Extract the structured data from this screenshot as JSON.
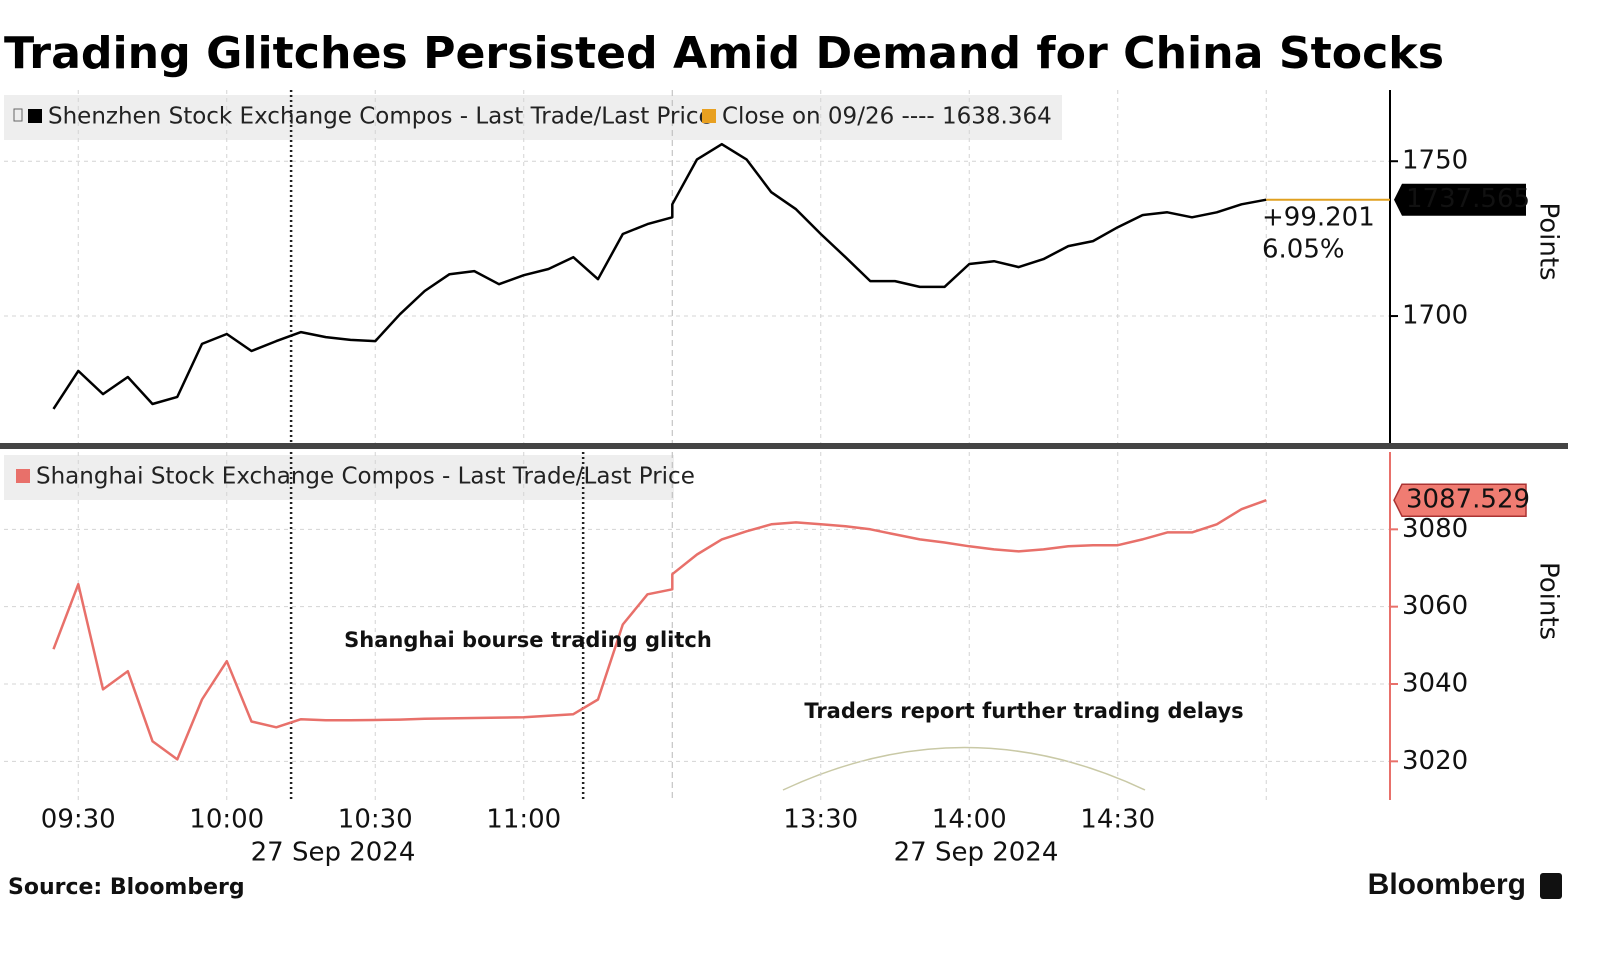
{
  "title": "Trading Glitches Persisted Amid Demand for China Stocks",
  "source": "Source: Bloomberg",
  "brand": "Bloomberg",
  "chart_data": [
    {
      "type": "line",
      "legend_extra": "Close on 09/26 ---- 1638.364",
      "change_labels": [
        "+99.201",
        "6.05%"
      ],
      "ylabel": "Points",
      "x": [
        "09:25",
        "09:30",
        "09:35",
        "09:40",
        "09:45",
        "09:50",
        "09:55",
        "10:00",
        "10:05",
        "10:10",
        "10:15",
        "10:20",
        "10:25",
        "10:30",
        "10:35",
        "10:40",
        "10:45",
        "10:50",
        "10:55",
        "11:00",
        "11:05",
        "11:10",
        "11:15",
        "11:20",
        "11:25",
        "11:30",
        "13:00",
        "13:05",
        "13:10",
        "13:15",
        "13:20",
        "13:25",
        "13:30",
        "13:35",
        "13:40",
        "13:45",
        "13:50",
        "13:55",
        "14:00",
        "14:05",
        "14:10",
        "14:15",
        "14:20",
        "14:25",
        "14:30",
        "14:35",
        "14:40",
        "14:45",
        "14:50",
        "14:55",
        "15:00"
      ],
      "series": [
        {
          "name": "Shenzhen Stock Exchange Compos - Last Trade/Last Price",
          "color": "#000000",
          "values": [
            1670.0,
            1682.3,
            1674.8,
            1680.3,
            1671.6,
            1673.9,
            1691.0,
            1694.2,
            1688.7,
            1691.9,
            1694.8,
            1693.2,
            1692.3,
            1691.9,
            1700.6,
            1708.1,
            1713.5,
            1714.5,
            1710.3,
            1713.2,
            1715.2,
            1719.0,
            1711.9,
            1726.5,
            1729.7,
            1731.9,
            1736.1,
            1750.6,
            1755.5,
            1750.6,
            1740.0,
            1734.5,
            1726.5,
            1719.0,
            1711.3,
            1711.3,
            1709.4,
            1709.4,
            1716.8,
            1717.7,
            1715.8,
            1718.4,
            1722.6,
            1724.2,
            1728.7,
            1732.6,
            1733.5,
            1731.9,
            1733.5,
            1736.1,
            1737.565
          ]
        }
      ],
      "xlim": [
        "09:15",
        "15:25"
      ],
      "break": [
        "11:30",
        "13:00"
      ],
      "xticks": [
        "09:30",
        "10:00",
        "10:30",
        "11:00",
        "13:30",
        "14:00",
        "14:30"
      ],
      "events": [
        "10:13"
      ],
      "ylim": [
        1659,
        1773
      ],
      "yticks": [
        1700,
        1750
      ],
      "grid": true
    },
    {
      "type": "line",
      "ylabel": "Points",
      "x": [
        "09:25",
        "09:30",
        "09:35",
        "09:40",
        "09:45",
        "09:50",
        "09:55",
        "10:00",
        "10:05",
        "10:10",
        "10:15",
        "10:20",
        "10:25",
        "10:30",
        "10:35",
        "10:40",
        "10:45",
        "10:50",
        "10:55",
        "11:00",
        "11:05",
        "11:10",
        "11:15",
        "11:20",
        "11:25",
        "11:30",
        "13:00",
        "13:05",
        "13:10",
        "13:15",
        "13:20",
        "13:25",
        "13:30",
        "13:35",
        "13:40",
        "13:45",
        "13:50",
        "13:55",
        "14:00",
        "14:05",
        "14:10",
        "14:15",
        "14:20",
        "14:25",
        "14:30",
        "14:35",
        "14:40",
        "14:45",
        "14:50",
        "14:55",
        "15:00"
      ],
      "series": [
        {
          "name": "Shanghai Stock Exchange Compos - Last Trade/Last Price",
          "color": "#e8706a",
          "values": [
            3049.0,
            3065.8,
            3038.6,
            3043.3,
            3025.2,
            3020.5,
            3036.0,
            3045.9,
            3030.3,
            3028.8,
            3030.9,
            3030.6,
            3030.6,
            3030.7,
            3030.8,
            3031.0,
            3031.1,
            3031.2,
            3031.3,
            3031.4,
            3031.8,
            3032.2,
            3036.0,
            3055.4,
            3063.2,
            3064.5,
            3068.4,
            3073.5,
            3077.4,
            3079.5,
            3081.3,
            3081.8,
            3081.3,
            3080.8,
            3080.0,
            3078.7,
            3077.4,
            3076.6,
            3075.6,
            3074.8,
            3074.3,
            3074.8,
            3075.6,
            3075.9,
            3075.9,
            3077.4,
            3079.2,
            3079.2,
            3081.3,
            3085.2,
            3087.529
          ]
        }
      ],
      "xlim": [
        "09:15",
        "15:25"
      ],
      "break": [
        "11:30",
        "13:00"
      ],
      "xticks": [
        "09:30",
        "10:00",
        "10:30",
        "11:00",
        "13:30",
        "14:00",
        "14:30"
      ],
      "date_labels": [
        "27 Sep 2024",
        "27 Sep 2024"
      ],
      "events": [
        "10:13",
        "11:12"
      ],
      "annotations": [
        "Shanghai bourse trading glitch",
        "Traders report further trading delays"
      ],
      "ylim": [
        3010,
        3100
      ],
      "yticks": [
        3020,
        3040,
        3060,
        3080
      ],
      "grid": true
    }
  ]
}
